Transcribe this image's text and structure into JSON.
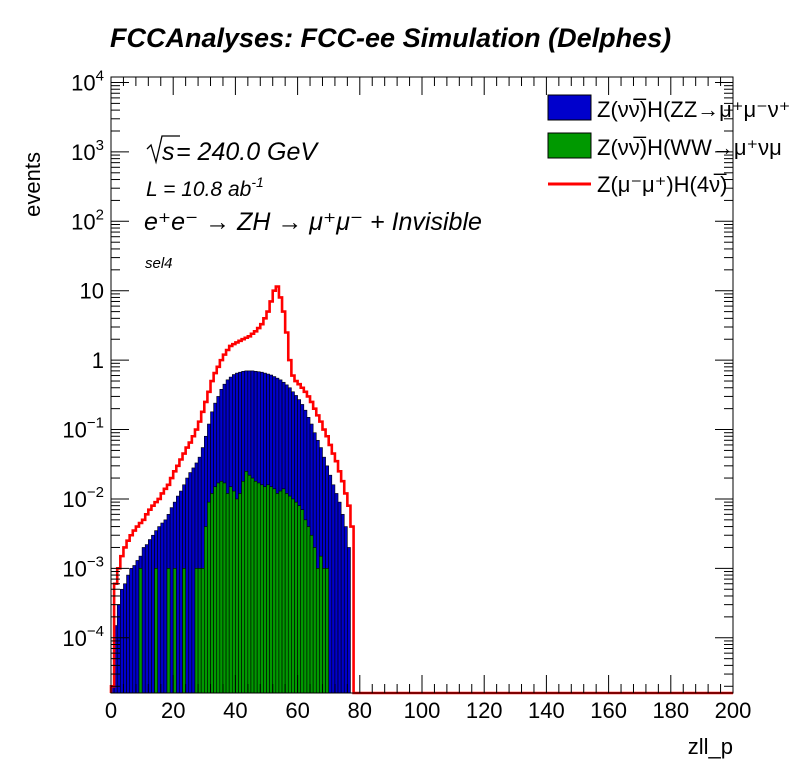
{
  "chart_data": {
    "type": "histogram-stack",
    "title": "FCCAnalyses: FCC-ee Simulation (Delphes)",
    "xlabel": "zll_p",
    "ylabel": "events",
    "x_range": [
      0,
      200
    ],
    "y_range": [
      1.6e-05,
      12000
    ],
    "y_scale": "log",
    "bin_width": 1,
    "x_ticks": [
      0,
      20,
      40,
      60,
      80,
      100,
      120,
      140,
      160,
      180,
      200
    ],
    "y_ticks": [
      {
        "value": 0.0001,
        "label": "10",
        "exp": "−4"
      },
      {
        "value": 0.001,
        "label": "10",
        "exp": "−3"
      },
      {
        "value": 0.01,
        "label": "10",
        "exp": "−2"
      },
      {
        "value": 0.1,
        "label": "10",
        "exp": "−1"
      },
      {
        "value": 1,
        "label": "1",
        "exp": ""
      },
      {
        "value": 10,
        "label": "10",
        "exp": ""
      },
      {
        "value": 100,
        "label": "10",
        "exp": "2"
      },
      {
        "value": 1000,
        "label": "10",
        "exp": "3"
      },
      {
        "value": 10000,
        "label": "10",
        "exp": "4"
      }
    ],
    "annotations": {
      "sqrt_s_prefix": "s",
      "sqrt_s_value": " = 240.0 GeV",
      "lumi": "L = 10.8 ab",
      "lumi_exp": "-1",
      "process": "e⁺e⁻ → ZH → μ⁺μ⁻ + Invisible",
      "selection": "sel4"
    },
    "legend_position": "top-right",
    "series": [
      {
        "name": "Z(νν̅)H(ZZ→μ⁺μ⁻ν⁺",
        "style": "filled",
        "color": "#0000CC",
        "x_start": 0,
        "values": [
          2e-05,
          0.00015,
          0.0003,
          0.0005,
          0.0006,
          0.0008,
          0.001,
          0.0011,
          0.0013,
          0.0015,
          0.002,
          0.0022,
          0.0026,
          0.003,
          0.0035,
          0.004,
          0.0045,
          0.005,
          0.006,
          0.0075,
          0.009,
          0.011,
          0.013,
          0.016,
          0.02,
          0.024,
          0.028,
          0.033,
          0.04,
          0.055,
          0.08,
          0.12,
          0.18,
          0.24,
          0.3,
          0.38,
          0.45,
          0.52,
          0.57,
          0.62,
          0.65,
          0.67,
          0.69,
          0.7,
          0.7,
          0.7,
          0.69,
          0.68,
          0.67,
          0.65,
          0.63,
          0.61,
          0.58,
          0.55,
          0.52,
          0.48,
          0.44,
          0.4,
          0.35,
          0.31,
          0.27,
          0.23,
          0.19,
          0.15,
          0.12,
          0.09,
          0.07,
          0.055,
          0.04,
          0.03,
          0.022,
          0.016,
          0.012,
          0.009,
          0.006,
          0.004,
          0.002,
          0,
          0,
          0
        ]
      },
      {
        "name": "Z(νν̅)H(WW→μ⁺νμ",
        "style": "filled",
        "color": "#009900",
        "x_start": 0,
        "values": [
          0,
          0,
          0,
          0,
          0,
          0,
          0,
          0,
          0,
          0.001,
          0,
          0,
          0,
          0,
          0.001,
          0,
          0,
          0,
          0.001,
          0,
          0.001,
          0,
          0,
          0.001,
          0,
          0,
          0,
          0.001,
          0.001,
          0.001,
          0.004,
          0.009,
          0.012,
          0.015,
          0.017,
          0.018,
          0.017,
          0.012,
          0.015,
          0.013,
          0.01,
          0.012,
          0.018,
          0.025,
          0.022,
          0.02,
          0.018,
          0.017,
          0.016,
          0.015,
          0.016,
          0.015,
          0.014,
          0.012,
          0.013,
          0.014,
          0.012,
          0.011,
          0.01,
          0.009,
          0.008,
          0.007,
          0.005,
          0.004,
          0.003,
          0.002,
          0.001,
          0.0015,
          0.001,
          0.001,
          0,
          0,
          0,
          0,
          0,
          0,
          0,
          0,
          0,
          0
        ]
      },
      {
        "name": "Z(μ⁻μ⁺)H(4ν̅)",
        "style": "line",
        "color": "#FF0000",
        "x_start": 0,
        "values": [
          2e-05,
          0.0006,
          0.001,
          0.0015,
          0.002,
          0.0025,
          0.003,
          0.0035,
          0.004,
          0.0045,
          0.005,
          0.006,
          0.007,
          0.008,
          0.009,
          0.01,
          0.012,
          0.014,
          0.016,
          0.02,
          0.025,
          0.03,
          0.037,
          0.045,
          0.055,
          0.065,
          0.08,
          0.1,
          0.13,
          0.18,
          0.25,
          0.35,
          0.5,
          0.65,
          0.8,
          1.0,
          1.2,
          1.4,
          1.6,
          1.7,
          1.8,
          1.9,
          2.0,
          2.1,
          2.2,
          2.4,
          2.6,
          2.9,
          3.3,
          4.0,
          5.0,
          7.0,
          10.0,
          11.5,
          8.0,
          5.0,
          2.5,
          1.0,
          0.6,
          0.5,
          0.45,
          0.4,
          0.35,
          0.3,
          0.25,
          0.2,
          0.16,
          0.13,
          0.1,
          0.08,
          0.06,
          0.045,
          0.035,
          0.025,
          0.018,
          0.012,
          0.008,
          0.004,
          0,
          0
        ]
      }
    ]
  }
}
